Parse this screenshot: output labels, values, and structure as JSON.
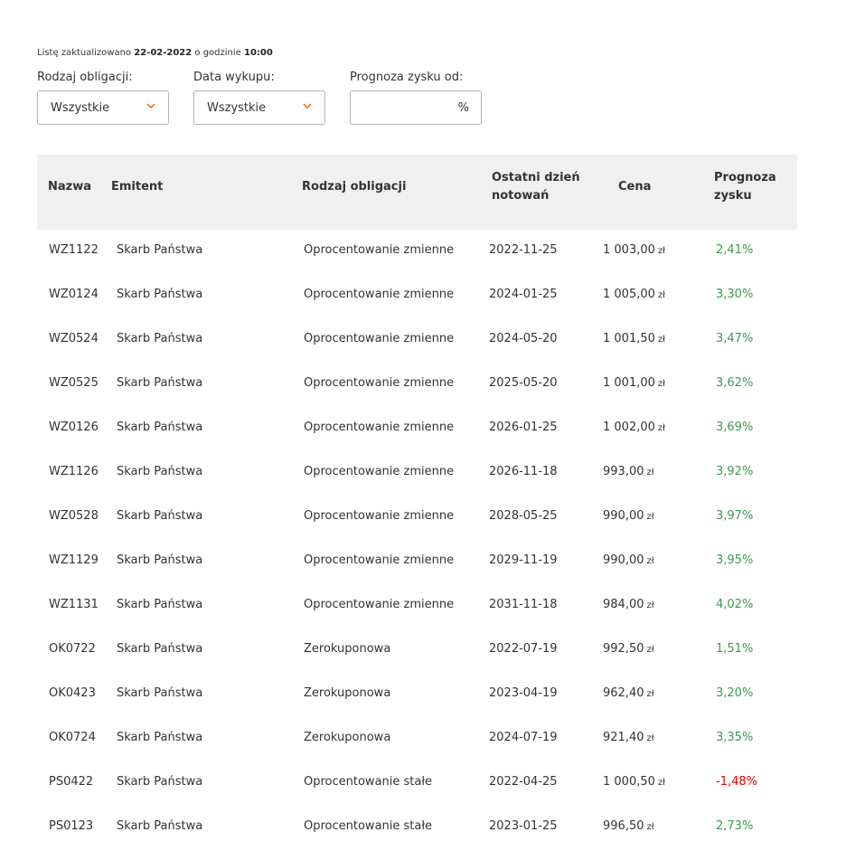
{
  "updated": {
    "prefix": "Listę zaktualizowano",
    "date": "22-02-2022",
    "middle": "o godzinie",
    "time": "10:00"
  },
  "filters": {
    "type": {
      "label": "Rodzaj obligacji:",
      "value": "Wszystkie",
      "icon": "chevron-down-icon"
    },
    "maturity": {
      "label": "Data wykupu:",
      "value": "Wszystkie",
      "icon": "chevron-down-icon"
    },
    "yield": {
      "label": "Prognoza zysku od:",
      "value": "",
      "unit": "%"
    }
  },
  "colors": {
    "accent": "#ff6200",
    "positive": "#3c9a4b",
    "negative": "#e60000",
    "header_bg": "#f0f0f0"
  },
  "table": {
    "headers": {
      "name": "Nazwa",
      "issuer": "Emitent",
      "type": "Rodzaj obligacji",
      "last_day_1": "Ostatni dzień",
      "last_day_2": "notowań",
      "price": "Cena",
      "yield_1": "Prognoza",
      "yield_2": "zysku"
    },
    "currency": "zł",
    "rows": [
      {
        "name": "WZ1122",
        "issuer": "Skarb Państwa",
        "type": "Oprocentowanie zmienne",
        "date": "2022-11-25",
        "price": "1 003,00",
        "yield": "2,41%",
        "trend": "pos"
      },
      {
        "name": "WZ0124",
        "issuer": "Skarb Państwa",
        "type": "Oprocentowanie zmienne",
        "date": "2024-01-25",
        "price": "1 005,00",
        "yield": "3,30%",
        "trend": "pos"
      },
      {
        "name": "WZ0524",
        "issuer": "Skarb Państwa",
        "type": "Oprocentowanie zmienne",
        "date": "2024-05-20",
        "price": "1 001,50",
        "yield": "3,47%",
        "trend": "pos"
      },
      {
        "name": "WZ0525",
        "issuer": "Skarb Państwa",
        "type": "Oprocentowanie zmienne",
        "date": "2025-05-20",
        "price": "1 001,00",
        "yield": "3,62%",
        "trend": "pos"
      },
      {
        "name": "WZ0126",
        "issuer": "Skarb Państwa",
        "type": "Oprocentowanie zmienne",
        "date": "2026-01-25",
        "price": "1 002,00",
        "yield": "3,69%",
        "trend": "pos"
      },
      {
        "name": "WZ1126",
        "issuer": "Skarb Państwa",
        "type": "Oprocentowanie zmienne",
        "date": "2026-11-18",
        "price": "993,00",
        "yield": "3,92%",
        "trend": "pos"
      },
      {
        "name": "WZ0528",
        "issuer": "Skarb Państwa",
        "type": "Oprocentowanie zmienne",
        "date": "2028-05-25",
        "price": "990,00",
        "yield": "3,97%",
        "trend": "pos"
      },
      {
        "name": "WZ1129",
        "issuer": "Skarb Państwa",
        "type": "Oprocentowanie zmienne",
        "date": "2029-11-19",
        "price": "990,00",
        "yield": "3,95%",
        "trend": "pos"
      },
      {
        "name": "WZ1131",
        "issuer": "Skarb Państwa",
        "type": "Oprocentowanie zmienne",
        "date": "2031-11-18",
        "price": "984,00",
        "yield": "4,02%",
        "trend": "pos"
      },
      {
        "name": "OK0722",
        "issuer": "Skarb Państwa",
        "type": "Zerokuponowa",
        "date": "2022-07-19",
        "price": "992,50",
        "yield": "1,51%",
        "trend": "pos"
      },
      {
        "name": "OK0423",
        "issuer": "Skarb Państwa",
        "type": "Zerokuponowa",
        "date": "2023-04-19",
        "price": "962,40",
        "yield": "3,20%",
        "trend": "pos"
      },
      {
        "name": "OK0724",
        "issuer": "Skarb Państwa",
        "type": "Zerokuponowa",
        "date": "2024-07-19",
        "price": "921,40",
        "yield": "3,35%",
        "trend": "pos"
      },
      {
        "name": "PS0422",
        "issuer": "Skarb Państwa",
        "type": "Oprocentowanie stałe",
        "date": "2022-04-25",
        "price": "1 000,50",
        "yield": "-1,48%",
        "trend": "neg"
      },
      {
        "name": "PS0123",
        "issuer": "Skarb Państwa",
        "type": "Oprocentowanie stałe",
        "date": "2023-01-25",
        "price": "996,50",
        "yield": "2,73%",
        "trend": "pos"
      }
    ]
  }
}
